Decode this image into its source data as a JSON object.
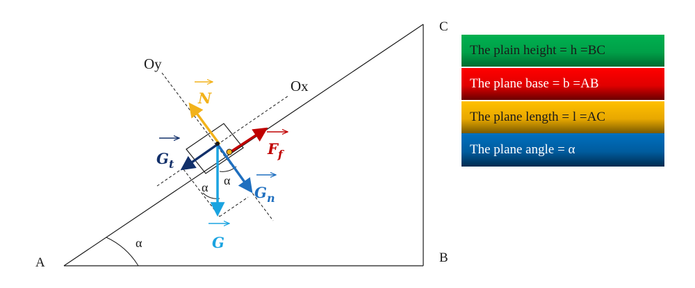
{
  "points": {
    "A": "A",
    "B": "B",
    "C": "C"
  },
  "axes": {
    "oy": "Oy",
    "ox": "Ox"
  },
  "angles": {
    "base": "α",
    "left": "α",
    "right": "α"
  },
  "forces": {
    "N": "N",
    "G": "G",
    "Gt_main": "G",
    "Gt_sub": "t",
    "Gn_main": "G",
    "Gn_sub": "n",
    "Ff_main": "F",
    "Ff_sub": "f"
  },
  "colors": {
    "N": "#f2b21a",
    "G": "#1aa3e0",
    "Gt": "#12306a",
    "Gn": "#1f6fbf",
    "Ff": "#c00000"
  },
  "legend": [
    {
      "text": "The plain height = h =BC",
      "color": "#00b050"
    },
    {
      "text": "The plane base = b =AB",
      "color": "#ff0000"
    },
    {
      "text": "The plane length = l =AC",
      "color": "#ffc000"
    },
    {
      "text": "The plane angle = α",
      "color": "#0070c0"
    }
  ]
}
